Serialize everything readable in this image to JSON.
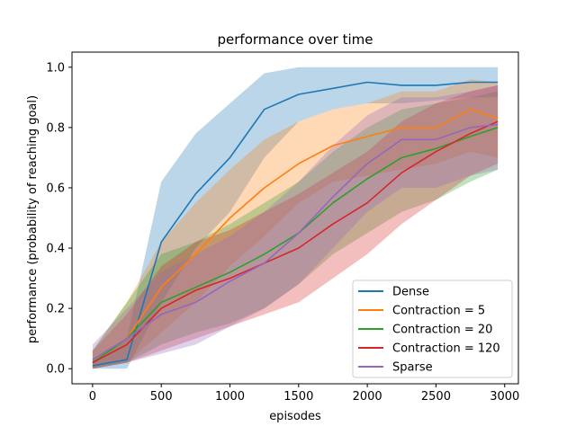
{
  "chart_data": {
    "type": "line",
    "title": "performance over time",
    "xlabel": "episodes",
    "ylabel": "performance (probability of reaching goal)",
    "xlim": [
      -150,
      3100
    ],
    "ylim": [
      -0.05,
      1.05
    ],
    "xticks": [
      0,
      500,
      1000,
      1500,
      2000,
      2500,
      3000
    ],
    "yticks": [
      0.0,
      0.2,
      0.4,
      0.6,
      0.8,
      1.0
    ],
    "xtick_labels": [
      "0",
      "500",
      "1000",
      "1500",
      "2000",
      "2500",
      "3000"
    ],
    "ytick_labels": [
      "0.0",
      "0.2",
      "0.4",
      "0.6",
      "0.8",
      "1.0"
    ],
    "grid": false,
    "legend_position": "lower right",
    "x": [
      0,
      250,
      500,
      750,
      1000,
      1250,
      1500,
      1750,
      2000,
      2250,
      2500,
      2750,
      2950
    ],
    "series": [
      {
        "name": "Dense",
        "color": "#1f77b4",
        "values": [
          0.01,
          0.03,
          0.42,
          0.58,
          0.7,
          0.86,
          0.91,
          0.93,
          0.95,
          0.94,
          0.94,
          0.95,
          0.95
        ],
        "lower": [
          0.0,
          0.0,
          0.22,
          0.4,
          0.52,
          0.7,
          0.82,
          0.86,
          0.88,
          0.88,
          0.89,
          0.9,
          0.9
        ],
        "upper": [
          0.03,
          0.1,
          0.62,
          0.78,
          0.88,
          0.98,
          1.0,
          1.0,
          1.0,
          1.0,
          1.0,
          1.0,
          1.0
        ]
      },
      {
        "name": "Contraction = 5",
        "color": "#ff7f0e",
        "values": [
          0.02,
          0.1,
          0.27,
          0.38,
          0.5,
          0.6,
          0.68,
          0.74,
          0.77,
          0.8,
          0.8,
          0.86,
          0.83
        ],
        "lower": [
          0.0,
          0.02,
          0.12,
          0.22,
          0.34,
          0.44,
          0.55,
          0.62,
          0.64,
          0.66,
          0.68,
          0.72,
          0.7
        ],
        "upper": [
          0.06,
          0.22,
          0.42,
          0.55,
          0.66,
          0.76,
          0.82,
          0.86,
          0.88,
          0.92,
          0.92,
          0.96,
          0.95
        ]
      },
      {
        "name": "Contraction = 20",
        "color": "#2ca02c",
        "values": [
          0.02,
          0.1,
          0.22,
          0.27,
          0.32,
          0.38,
          0.45,
          0.55,
          0.63,
          0.7,
          0.73,
          0.77,
          0.8
        ],
        "lower": [
          0.0,
          0.02,
          0.08,
          0.12,
          0.15,
          0.2,
          0.28,
          0.38,
          0.45,
          0.52,
          0.56,
          0.62,
          0.66
        ],
        "upper": [
          0.06,
          0.22,
          0.38,
          0.42,
          0.48,
          0.55,
          0.62,
          0.72,
          0.8,
          0.86,
          0.88,
          0.9,
          0.92
        ]
      },
      {
        "name": "Contraction = 120",
        "color": "#d62728",
        "values": [
          0.02,
          0.08,
          0.2,
          0.26,
          0.3,
          0.35,
          0.4,
          0.48,
          0.55,
          0.65,
          0.72,
          0.78,
          0.82
        ],
        "lower": [
          0.0,
          0.02,
          0.06,
          0.1,
          0.14,
          0.18,
          0.22,
          0.3,
          0.38,
          0.48,
          0.56,
          0.64,
          0.68
        ],
        "upper": [
          0.06,
          0.18,
          0.34,
          0.42,
          0.46,
          0.52,
          0.58,
          0.65,
          0.72,
          0.82,
          0.88,
          0.92,
          0.94
        ]
      },
      {
        "name": "Sparse",
        "color": "#9467bd",
        "values": [
          0.03,
          0.1,
          0.18,
          0.22,
          0.29,
          0.35,
          0.45,
          0.57,
          0.68,
          0.76,
          0.76,
          0.8,
          0.81
        ],
        "lower": [
          0.0,
          0.02,
          0.05,
          0.08,
          0.14,
          0.2,
          0.28,
          0.4,
          0.52,
          0.6,
          0.6,
          0.64,
          0.66
        ],
        "upper": [
          0.08,
          0.2,
          0.32,
          0.38,
          0.44,
          0.52,
          0.62,
          0.74,
          0.84,
          0.9,
          0.9,
          0.92,
          0.94
        ]
      }
    ]
  }
}
